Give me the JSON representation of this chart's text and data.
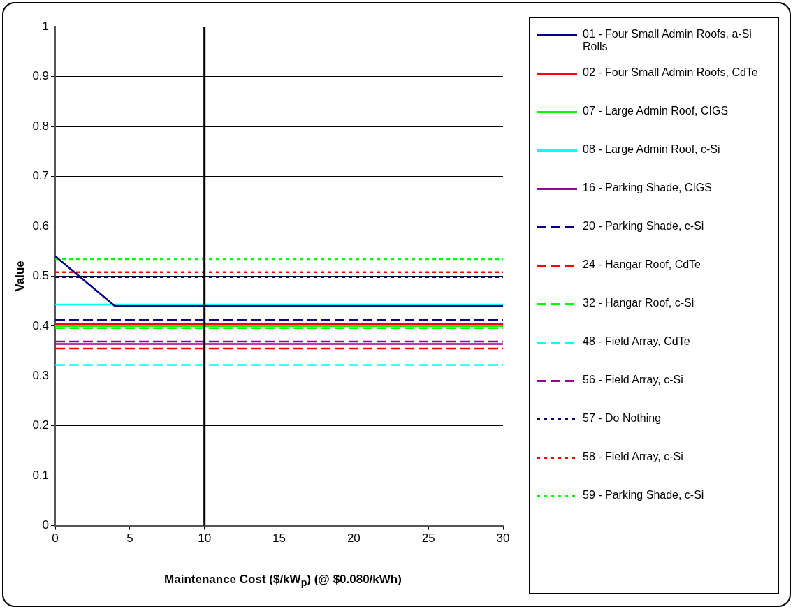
{
  "chart_data": {
    "type": "line",
    "xlabel": "Maintenance Cost ($/kW$_{p}$) (@ $0.080/kWh)",
    "ylabel": "Value",
    "xlim": [
      0,
      30
    ],
    "xticks": [
      0,
      5,
      10,
      15,
      20,
      25,
      30
    ],
    "ylim": [
      0,
      1
    ],
    "yticks": [
      0,
      0.1,
      0.2,
      0.3,
      0.4,
      0.5,
      0.6,
      0.7,
      0.8,
      0.9,
      1
    ],
    "grid": "y",
    "legend": "right",
    "marker": "none",
    "ref_lines": [
      {
        "axis": "x",
        "value": 10,
        "color": "#000000"
      }
    ],
    "series": [
      {
        "name": "01 - Four Small Admin Roofs, a-Si Rolls",
        "color": "#000080",
        "line_style": "solid",
        "x": [
          0,
          4,
          30
        ],
        "values": [
          0.54,
          0.44,
          0.44
        ]
      },
      {
        "name": "02 - Four Small Admin Roofs, CdTe",
        "color": "#ff0000",
        "line_style": "solid",
        "x": [
          0,
          30
        ],
        "values": [
          0.404,
          0.404
        ]
      },
      {
        "name": "07 - Large Admin Roof, CIGS",
        "color": "#00ff00",
        "line_style": "solid",
        "x": [
          0,
          30
        ],
        "values": [
          0.4,
          0.4
        ]
      },
      {
        "name": "08 - Large Admin Roof, c-Si",
        "color": "#00ffff",
        "line_style": "solid",
        "x": [
          0,
          30
        ],
        "values": [
          0.443,
          0.443
        ]
      },
      {
        "name": "16 - Parking Shade, CIGS",
        "color": "#990099",
        "line_style": "solid",
        "x": [
          0,
          30
        ],
        "values": [
          0.364,
          0.364
        ]
      },
      {
        "name": "20 - Parking Shade, c-Si",
        "color": "#000080",
        "line_style": "dashed",
        "x": [
          0,
          30
        ],
        "values": [
          0.412,
          0.412
        ]
      },
      {
        "name": "24 - Hangar Roof, CdTe",
        "color": "#ff0000",
        "line_style": "dashed",
        "x": [
          0,
          30
        ],
        "values": [
          0.355,
          0.355
        ]
      },
      {
        "name": "32 - Hangar Roof, c-Si",
        "color": "#00ff00",
        "line_style": "dashed",
        "x": [
          0,
          30
        ],
        "values": [
          0.396,
          0.396
        ]
      },
      {
        "name": "48 - Field Array, CdTe",
        "color": "#00ffff",
        "line_style": "dashed",
        "x": [
          0,
          30
        ],
        "values": [
          0.322,
          0.322
        ]
      },
      {
        "name": "56 - Field Array, c-Si",
        "color": "#990099",
        "line_style": "dashed",
        "x": [
          0,
          30
        ],
        "values": [
          0.369,
          0.369
        ]
      },
      {
        "name": "57 - Do Nothing",
        "color": "#000080",
        "line_style": "dotted",
        "x": [
          0,
          30
        ],
        "values": [
          0.498,
          0.498
        ]
      },
      {
        "name": "58 - Field Array, c-Si",
        "color": "#ff0000",
        "line_style": "dotted",
        "x": [
          0,
          30
        ],
        "values": [
          0.508,
          0.508
        ]
      },
      {
        "name": "59 - Parking Shade, c-Si",
        "color": "#00ff00",
        "line_style": "dotted",
        "x": [
          0,
          30
        ],
        "values": [
          0.534,
          0.534
        ]
      }
    ]
  }
}
